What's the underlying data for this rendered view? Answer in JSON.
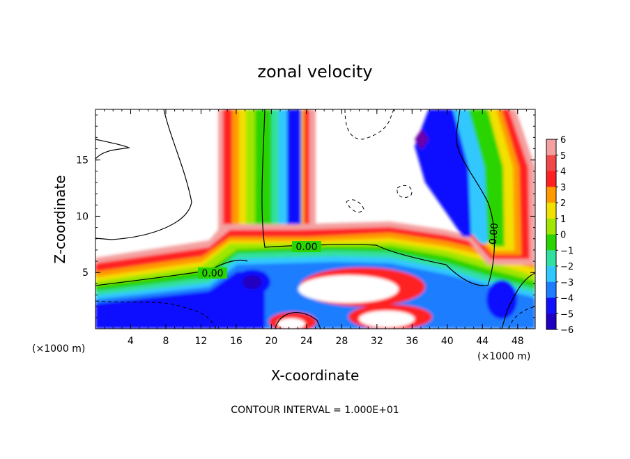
{
  "chart_data": {
    "type": "heatmap",
    "title": "zonal velocity",
    "xlabel": "X-coordinate",
    "ylabel": "Z-coordinate",
    "x_unit_left": "(×1000 m)",
    "x_unit_right": "(×1000 m)",
    "xlim": [
      0,
      50
    ],
    "ylim": [
      0,
      19.5
    ],
    "x_ticks": [
      "4",
      "8",
      "12",
      "16",
      "20",
      "24",
      "28",
      "32",
      "36",
      "40",
      "44",
      "48"
    ],
    "x_tick_values": [
      4,
      8,
      12,
      16,
      20,
      24,
      28,
      32,
      36,
      40,
      44,
      48
    ],
    "y_ticks": [
      "5",
      "10",
      "15"
    ],
    "y_tick_values": [
      5,
      10,
      15
    ],
    "colorbar": {
      "labels": [
        "6",
        "5",
        "4",
        "3",
        "2",
        "1",
        "0",
        "-1",
        "-2",
        "-3",
        "-4",
        "-5",
        "-6"
      ],
      "values": [
        6,
        5,
        4,
        3,
        2,
        1,
        0,
        -1,
        -2,
        -3,
        -4,
        -5,
        -6
      ],
      "colors": [
        "#f4a0a0",
        "#f04848",
        "#ff2020",
        "#ff9a00",
        "#f2e000",
        "#a0e600",
        "#2ad400",
        "#30e0a0",
        "#30c8ff",
        "#1e7dff",
        "#1010ff",
        "#2000c0",
        "#6a00a8"
      ]
    },
    "contour_labels": [
      {
        "text": "0.00",
        "x": 23.8,
        "y": 7.3
      },
      {
        "text": "0.00",
        "x": 13.5,
        "y": 5.0
      },
      {
        "text": "0.00",
        "x": 45.7,
        "y": 8.6
      }
    ],
    "footer": "CONTOUR INTERVAL = 1.000E+01"
  }
}
